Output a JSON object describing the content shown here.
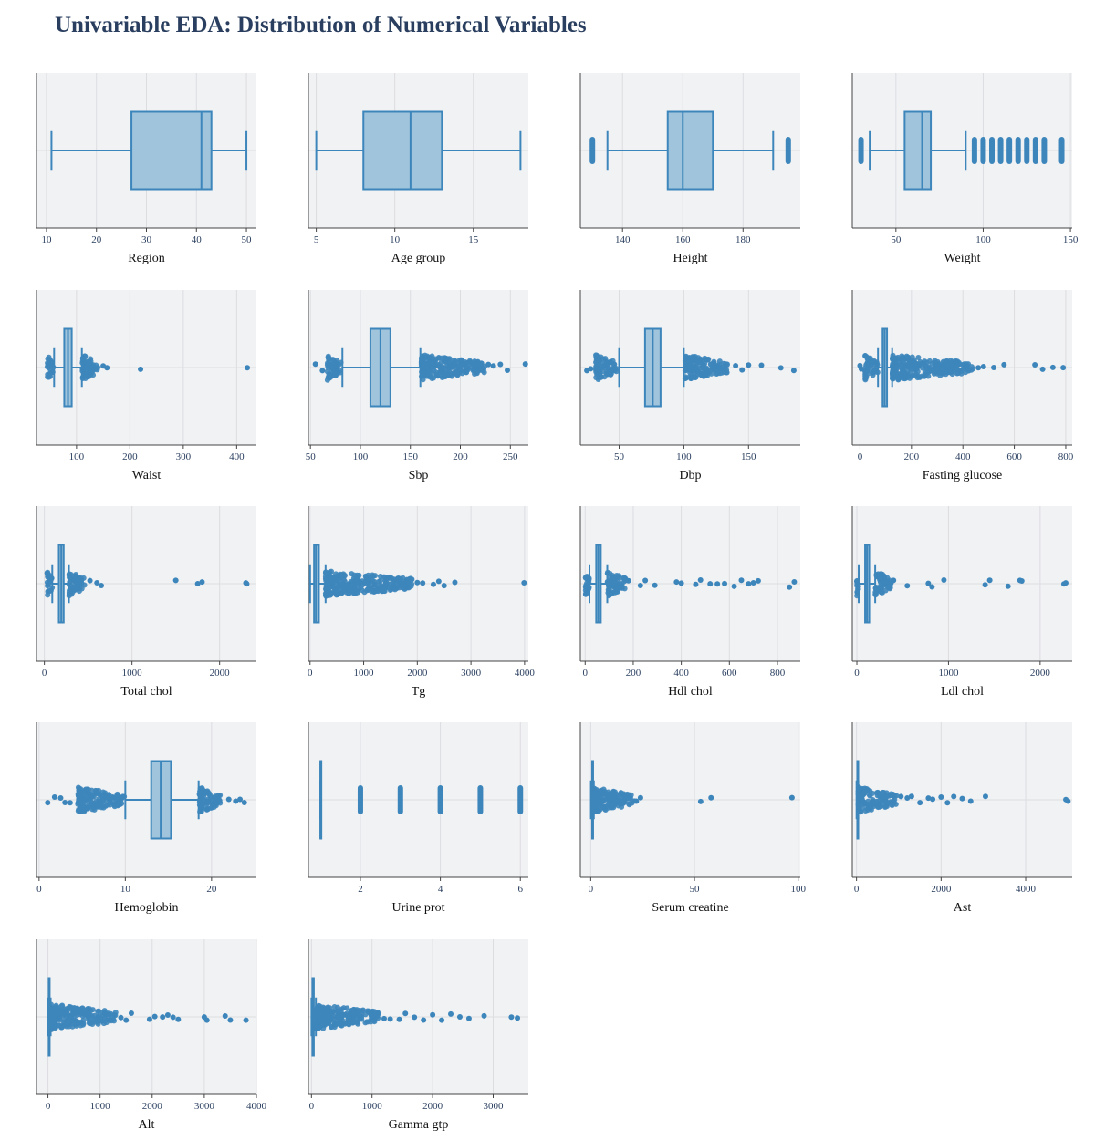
{
  "title": "Univariable EDA: Distribution of Numerical Variables",
  "colors": {
    "plot_bg": "#f1f2f4",
    "grid": "#dcdde1",
    "axis_line": "#444444",
    "box_fill": "#a0c4dc",
    "box_line": "#3d86bb",
    "point": "#3d86bb",
    "tick_text": "#2a3f5f"
  },
  "chart_data": [
    {
      "type": "box",
      "xlabel": "Region",
      "xlim": [
        8,
        52
      ],
      "ticks": [
        10,
        20,
        30,
        40,
        50
      ],
      "q1": 27,
      "median": 41,
      "q3": 43,
      "whisker_low": 11,
      "whisker_high": 50,
      "outliers": []
    },
    {
      "type": "box",
      "xlabel": "Age group",
      "xlim": [
        4.5,
        18.5
      ],
      "ticks": [
        5,
        10,
        15
      ],
      "q1": 8,
      "median": 11,
      "q3": 13,
      "whisker_low": 5,
      "whisker_high": 18,
      "outliers": []
    },
    {
      "type": "box",
      "xlabel": "Height",
      "xlim": [
        126,
        199
      ],
      "ticks": [
        140,
        160,
        180
      ],
      "q1": 155,
      "median": 160,
      "q3": 170,
      "whisker_low": 135,
      "whisker_high": 190,
      "outliers": [
        130,
        195
      ]
    },
    {
      "type": "box",
      "xlabel": "Weight",
      "xlim": [
        25,
        151
      ],
      "ticks": [
        50,
        100,
        150
      ],
      "q1": 55,
      "median": 65,
      "q3": 70,
      "whisker_low": 35,
      "whisker_high": 90,
      "outliers": [
        30,
        95,
        100,
        105,
        110,
        115,
        120,
        125,
        130,
        135,
        145
      ]
    },
    {
      "type": "box",
      "xlabel": "Waist",
      "xlim": [
        25,
        437
      ],
      "ticks": [
        100,
        200,
        300,
        400
      ],
      "q1": 77,
      "median": 84,
      "q3": 91,
      "whisker_low": 58,
      "whisker_high": 110,
      "outliers_low_range": [
        45,
        57
      ],
      "outliers_high_range": [
        111,
        140
      ],
      "outliers": [
        150,
        157,
        220,
        420
      ]
    },
    {
      "type": "box",
      "xlabel": "Sbp",
      "xlim": [
        48,
        268
      ],
      "ticks": [
        50,
        100,
        150,
        200,
        250
      ],
      "q1": 110,
      "median": 120,
      "q3": 130,
      "whisker_low": 82,
      "whisker_high": 160,
      "outliers_low_range": [
        67,
        81
      ],
      "outliers_high_range": [
        161,
        225
      ],
      "outliers": [
        55,
        62,
        228,
        233,
        240,
        247,
        265
      ]
    },
    {
      "type": "box",
      "xlabel": "Dbp",
      "xlim": [
        20,
        190
      ],
      "ticks": [
        50,
        100,
        150
      ],
      "q1": 70,
      "median": 76,
      "q3": 82,
      "whisker_low": 50,
      "whisker_high": 100,
      "outliers_low_range": [
        32,
        49
      ],
      "outliers_high_range": [
        101,
        135
      ],
      "outliers": [
        25,
        28,
        140,
        145,
        150,
        160,
        175,
        185
      ]
    },
    {
      "type": "box",
      "xlabel": "Fasting glucose",
      "xlim": [
        -30,
        825
      ],
      "ticks": [
        0,
        200,
        400,
        600,
        800
      ],
      "q1": 88,
      "median": 96,
      "q3": 105,
      "whisker_low": 70,
      "whisker_high": 125,
      "outliers_low_range": [
        20,
        69
      ],
      "outliers_high_range": [
        126,
        440
      ],
      "outliers": [
        0,
        5,
        460,
        480,
        520,
        560,
        680,
        710,
        750,
        790
      ]
    },
    {
      "type": "box",
      "xlabel": "Total chol",
      "xlim": [
        -90,
        2420
      ],
      "ticks": [
        0,
        1000,
        2000
      ],
      "q1": 165,
      "median": 193,
      "q3": 220,
      "whisker_low": 90,
      "whisker_high": 280,
      "outliers_low_range": [
        30,
        89
      ],
      "outliers_high_range": [
        281,
        460
      ],
      "outliers": [
        520,
        600,
        650,
        1500,
        1750,
        1800,
        2300,
        2310
      ]
    },
    {
      "type": "box",
      "xlabel": "Tg",
      "xlim": [
        -30,
        4070
      ],
      "ticks": [
        0,
        1000,
        2000,
        3000,
        4000
      ],
      "q1": 75,
      "median": 110,
      "q3": 165,
      "whisker_low": 1,
      "whisker_high": 290,
      "outliers_low_range": [],
      "outliers_high_range": [
        291,
        1900
      ],
      "outliers": [
        2000,
        2100,
        2300,
        2400,
        2500,
        2700,
        3990
      ]
    },
    {
      "type": "box",
      "xlabel": "Hdl chol",
      "xlim": [
        -20,
        895
      ],
      "ticks": [
        0,
        200,
        400,
        600,
        800
      ],
      "q1": 46,
      "median": 55,
      "q3": 65,
      "whisker_low": 18,
      "whisker_high": 92,
      "outliers_low_range": [
        2,
        17
      ],
      "outliers_high_range": [
        93,
        170
      ],
      "outliers": [
        180,
        230,
        250,
        290,
        380,
        400,
        460,
        480,
        520,
        550,
        580,
        620,
        650,
        680,
        700,
        720,
        850,
        870
      ]
    },
    {
      "type": "box",
      "xlabel": "Ldl chol",
      "xlim": [
        -50,
        2350
      ],
      "ticks": [
        0,
        1000,
        2000
      ],
      "q1": 90,
      "median": 110,
      "q3": 135,
      "whisker_low": 20,
      "whisker_high": 200,
      "outliers_low_range": [
        0,
        19
      ],
      "outliers_high_range": [
        201,
        380
      ],
      "outliers": [
        400,
        550,
        780,
        820,
        950,
        1400,
        1450,
        1650,
        1780,
        1800,
        2260,
        2280
      ]
    },
    {
      "type": "box",
      "xlabel": "Hemoglobin",
      "xlim": [
        -0.3,
        25.2
      ],
      "ticks": [
        0,
        10,
        20
      ],
      "q1": 13.0,
      "median": 14.1,
      "q3": 15.3,
      "whisker_low": 10.0,
      "whisker_high": 18.5,
      "outliers_low_range": [
        4.5,
        9.9
      ],
      "outliers_high_range": [
        18.6,
        21.0
      ],
      "outliers": [
        1.0,
        1.8,
        2.5,
        3.0,
        3.6,
        22.0,
        22.8,
        23.3,
        23.8
      ]
    },
    {
      "type": "box",
      "xlabel": "Urine prot",
      "xlim": [
        0.7,
        6.2
      ],
      "ticks": [
        2,
        4,
        6
      ],
      "q1": 1,
      "median": 1,
      "q3": 1,
      "whisker_low": 1,
      "whisker_high": 1,
      "outliers": [
        2,
        3,
        4,
        5,
        6
      ],
      "stacked_outliers": true
    },
    {
      "type": "box",
      "xlabel": "Serum creatine",
      "xlim": [
        -5,
        101
      ],
      "ticks": [
        0,
        50,
        100
      ],
      "q1": 0.7,
      "median": 0.85,
      "q3": 1.0,
      "whisker_low": 0.1,
      "whisker_high": 1.5,
      "outliers_low_range": [],
      "outliers_high_range": [
        1.6,
        20
      ],
      "outliers": [
        21,
        22,
        24,
        53,
        58,
        97
      ]
    },
    {
      "type": "box",
      "xlabel": "Ast",
      "xlim": [
        -100,
        5100
      ],
      "ticks": [
        0,
        2000,
        4000
      ],
      "q1": 19,
      "median": 23,
      "q3": 28,
      "whisker_low": 1,
      "whisker_high": 42,
      "outliers_low_range": [],
      "outliers_high_range": [
        43,
        950
      ],
      "outliers": [
        1050,
        1200,
        1300,
        1500,
        1700,
        1800,
        2000,
        2150,
        2300,
        2500,
        2700,
        3050,
        4950,
        5000
      ]
    },
    {
      "type": "box",
      "xlabel": "Alt",
      "xlim": [
        -220,
        4000
      ],
      "ticks": [
        0,
        1000,
        2000,
        3000,
        4000
      ],
      "q1": 15,
      "median": 21,
      "q3": 30,
      "whisker_low": 1,
      "whisker_high": 52,
      "outliers_low_range": [],
      "outliers_high_range": [
        53,
        1300
      ],
      "outliers": [
        1400,
        1500,
        1600,
        1950,
        2050,
        2200,
        2300,
        2400,
        2500,
        3000,
        3050,
        3400,
        3500,
        3800
      ]
    },
    {
      "type": "box",
      "xlabel": "Gamma gtp",
      "xlim": [
        -50,
        3580
      ],
      "ticks": [
        0,
        1000,
        2000,
        3000
      ],
      "q1": 16,
      "median": 23,
      "q3": 39,
      "whisker_low": 1,
      "whisker_high": 73,
      "outliers_low_range": [],
      "outliers_high_range": [
        74,
        1100
      ],
      "outliers": [
        1200,
        1300,
        1450,
        1550,
        1700,
        1850,
        2000,
        2150,
        2300,
        2450,
        2600,
        2850,
        3300,
        3400
      ]
    }
  ]
}
